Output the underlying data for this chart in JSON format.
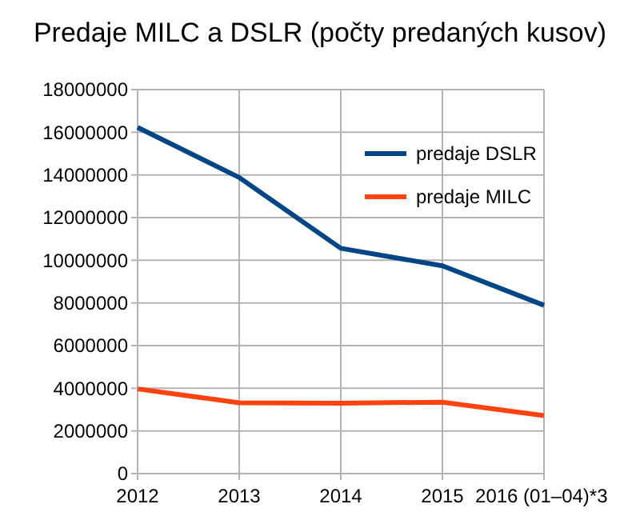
{
  "chart_data": {
    "type": "line",
    "title": "Predaje MILC a DSLR (počty predaných kusov)",
    "categories": [
      "2012",
      "2013",
      "2014",
      "2015",
      "2016 (01–04)*3"
    ],
    "series": [
      {
        "name": "predaje DSLR",
        "color": "#004586",
        "values": [
          16230000,
          13880000,
          10560000,
          9740000,
          7890000
        ]
      },
      {
        "name": "predaje MILC",
        "color": "#ff420e",
        "values": [
          3970000,
          3320000,
          3300000,
          3350000,
          2720000
        ]
      }
    ],
    "ylim": [
      0,
      18000000
    ],
    "yticks": [
      0,
      2000000,
      4000000,
      6000000,
      8000000,
      10000000,
      12000000,
      14000000,
      16000000,
      18000000
    ],
    "grid": true,
    "legend": "top right",
    "marker": "none",
    "line_style": "solid"
  }
}
